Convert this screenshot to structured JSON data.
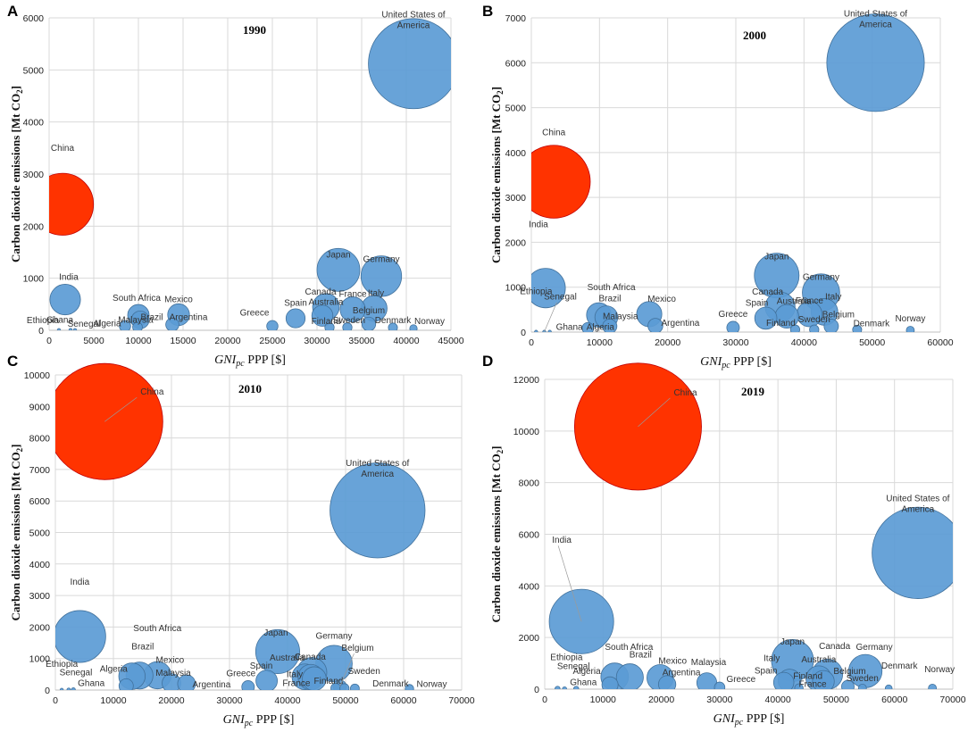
{
  "figure": {
    "x_axis_label": "GNIpc PPP [$]",
    "y_axis_label": "Carbon dioxide emissions  [Mt CO2]",
    "colors": {
      "bubble": "#5b9bd5",
      "bubble_edge": "#41719c",
      "china": "#ff3300",
      "china_edge": "#c00000"
    }
  },
  "chart_data": [
    {
      "type": "scatter",
      "panel": "A",
      "title": "1990",
      "xlabel": "GNIpc PPP [$]",
      "ylabel": "Carbon dioxide emissions [Mt CO2]",
      "xlim": [
        0,
        45000
      ],
      "ylim": [
        0,
        6000
      ],
      "xticks": [
        "0",
        "5000",
        "10000",
        "15000",
        "20000",
        "25000",
        "30000",
        "35000",
        "40000",
        "45000"
      ],
      "yticks": [
        "0",
        "1000",
        "2000",
        "3000",
        "4000",
        "5000",
        "6000"
      ],
      "points": [
        {
          "name": "China",
          "x": 1500,
          "y": 2420,
          "size": 2420
        },
        {
          "name": "India",
          "x": 1800,
          "y": 590,
          "size": 590
        },
        {
          "name": "United States of America",
          "x": 40800,
          "y": 5120,
          "size": 5120
        },
        {
          "name": "Japan",
          "x": 32400,
          "y": 1160,
          "size": 1160
        },
        {
          "name": "Germany",
          "x": 37200,
          "y": 1040,
          "size": 1040
        },
        {
          "name": "South Africa",
          "x": 10000,
          "y": 290,
          "size": 290
        },
        {
          "name": "Mexico",
          "x": 14500,
          "y": 300,
          "size": 300
        },
        {
          "name": "Brazil",
          "x": 10200,
          "y": 200,
          "size": 200
        },
        {
          "name": "Algeria",
          "x": 8500,
          "y": 80,
          "size": 80
        },
        {
          "name": "Malaysia",
          "x": 9900,
          "y": 60,
          "size": 60
        },
        {
          "name": "Argentina",
          "x": 13800,
          "y": 110,
          "size": 110
        },
        {
          "name": "Ghana",
          "x": 2400,
          "y": 5,
          "size": 5
        },
        {
          "name": "Ethiopia",
          "x": 1100,
          "y": 3,
          "size": 3
        },
        {
          "name": "Senegal",
          "x": 2900,
          "y": 4,
          "size": 4
        },
        {
          "name": "Greece",
          "x": 25000,
          "y": 80,
          "size": 80
        },
        {
          "name": "Spain",
          "x": 27600,
          "y": 230,
          "size": 230
        },
        {
          "name": "Canada",
          "x": 31000,
          "y": 450,
          "size": 450
        },
        {
          "name": "Australia",
          "x": 30600,
          "y": 280,
          "size": 280
        },
        {
          "name": "Finland",
          "x": 31400,
          "y": 55,
          "size": 55
        },
        {
          "name": "France",
          "x": 34000,
          "y": 400,
          "size": 400
        },
        {
          "name": "Italy",
          "x": 36400,
          "y": 420,
          "size": 420
        },
        {
          "name": "Sweden",
          "x": 33400,
          "y": 55,
          "size": 55
        },
        {
          "name": "Belgium",
          "x": 35800,
          "y": 120,
          "size": 120
        },
        {
          "name": "Denmark",
          "x": 38500,
          "y": 52,
          "size": 52
        },
        {
          "name": "Norway",
          "x": 40800,
          "y": 35,
          "size": 35
        }
      ]
    },
    {
      "type": "scatter",
      "panel": "B",
      "title": "2000",
      "xlabel": "GNIpc PPP [$]",
      "ylabel": "Carbon dioxide emissions [Mt CO2]",
      "xlim": [
        0,
        60000
      ],
      "ylim": [
        0,
        7000
      ],
      "xticks": [
        "0",
        "10000",
        "20000",
        "30000",
        "40000",
        "50000",
        "60000"
      ],
      "yticks": [
        "0",
        "1000",
        "2000",
        "3000",
        "4000",
        "5000",
        "6000",
        "7000"
      ],
      "points": [
        {
          "name": "China",
          "x": 3300,
          "y": 3350,
          "size": 3350
        },
        {
          "name": "India",
          "x": 2100,
          "y": 980,
          "size": 980
        },
        {
          "name": "United States of America",
          "x": 50500,
          "y": 6000,
          "size": 6000
        },
        {
          "name": "Japan",
          "x": 36000,
          "y": 1260,
          "size": 1260
        },
        {
          "name": "Germany",
          "x": 42500,
          "y": 880,
          "size": 880
        },
        {
          "name": "South Africa",
          "x": 9900,
          "y": 380,
          "size": 380
        },
        {
          "name": "Mexico",
          "x": 17300,
          "y": 400,
          "size": 400
        },
        {
          "name": "Brazil",
          "x": 11000,
          "y": 330,
          "size": 330
        },
        {
          "name": "Malaysia",
          "x": 11500,
          "y": 130,
          "size": 130
        },
        {
          "name": "Algeria",
          "x": 8300,
          "y": 85,
          "size": 85
        },
        {
          "name": "Argentina",
          "x": 18200,
          "y": 140,
          "size": 140
        },
        {
          "name": "Ethiopia",
          "x": 700,
          "y": 5,
          "size": 5
        },
        {
          "name": "Senegal",
          "x": 1900,
          "y": 5,
          "size": 5
        },
        {
          "name": "Ghana",
          "x": 2700,
          "y": 6,
          "size": 6
        },
        {
          "name": "Greece",
          "x": 29600,
          "y": 100,
          "size": 100
        },
        {
          "name": "Spain",
          "x": 34400,
          "y": 310,
          "size": 310
        },
        {
          "name": "Canada",
          "x": 36500,
          "y": 560,
          "size": 560
        },
        {
          "name": "Australia",
          "x": 37500,
          "y": 350,
          "size": 350
        },
        {
          "name": "Finland",
          "x": 38700,
          "y": 55,
          "size": 55
        },
        {
          "name": "France",
          "x": 40800,
          "y": 400,
          "size": 400
        },
        {
          "name": "Italy",
          "x": 43000,
          "y": 450,
          "size": 450
        },
        {
          "name": "Sweden",
          "x": 41500,
          "y": 55,
          "size": 55
        },
        {
          "name": "Belgium",
          "x": 44000,
          "y": 130,
          "size": 130
        },
        {
          "name": "Denmark",
          "x": 47800,
          "y": 52,
          "size": 52
        },
        {
          "name": "Norway",
          "x": 55600,
          "y": 40,
          "size": 40
        }
      ]
    },
    {
      "type": "scatter",
      "panel": "C",
      "title": "2010",
      "xlabel": "GNIpc PPP [$]",
      "ylabel": "Carbon dioxide emissions [Mt CO2]",
      "xlim": [
        0,
        70000
      ],
      "ylim": [
        0,
        10000
      ],
      "xticks": [
        "0",
        "10000",
        "20000",
        "30000",
        "40000",
        "50000",
        "60000",
        "70000"
      ],
      "yticks": [
        "0",
        "1000",
        "2000",
        "3000",
        "4000",
        "5000",
        "6000",
        "7000",
        "8000",
        "9000",
        "10000"
      ],
      "points": [
        {
          "name": "China",
          "x": 8500,
          "y": 8520,
          "size": 8520
        },
        {
          "name": "India",
          "x": 4200,
          "y": 1700,
          "size": 1700
        },
        {
          "name": "United States of America",
          "x": 55500,
          "y": 5700,
          "size": 5700
        },
        {
          "name": "Japan",
          "x": 38300,
          "y": 1220,
          "size": 1220
        },
        {
          "name": "Germany",
          "x": 48000,
          "y": 840,
          "size": 840
        },
        {
          "name": "South Africa",
          "x": 14500,
          "y": 460,
          "size": 460
        },
        {
          "name": "Brazil",
          "x": 13200,
          "y": 440,
          "size": 440
        },
        {
          "name": "Algeria",
          "x": 12200,
          "y": 130,
          "size": 130
        },
        {
          "name": "Mexico",
          "x": 17600,
          "y": 470,
          "size": 470
        },
        {
          "name": "Malaysia",
          "x": 20000,
          "y": 220,
          "size": 220
        },
        {
          "name": "Argentina",
          "x": 22600,
          "y": 200,
          "size": 200
        },
        {
          "name": "Ethiopia",
          "x": 1100,
          "y": 6,
          "size": 6
        },
        {
          "name": "Senegal",
          "x": 2300,
          "y": 8,
          "size": 8
        },
        {
          "name": "Ghana",
          "x": 3100,
          "y": 10,
          "size": 10
        },
        {
          "name": "Greece",
          "x": 33200,
          "y": 100,
          "size": 100
        },
        {
          "name": "Spain",
          "x": 36400,
          "y": 290,
          "size": 290
        },
        {
          "name": "Australia",
          "x": 43000,
          "y": 420,
          "size": 420
        },
        {
          "name": "Canada",
          "x": 44200,
          "y": 560,
          "size": 560
        },
        {
          "name": "Italy",
          "x": 44000,
          "y": 410,
          "size": 410
        },
        {
          "name": "France",
          "x": 44600,
          "y": 360,
          "size": 360
        },
        {
          "name": "Finland",
          "x": 48300,
          "y": 60,
          "size": 60
        },
        {
          "name": "Belgium",
          "x": 49000,
          "y": 110,
          "size": 110
        },
        {
          "name": "Sweden",
          "x": 49800,
          "y": 55,
          "size": 55
        },
        {
          "name": "Denmark",
          "x": 51600,
          "y": 50,
          "size": 50
        },
        {
          "name": "Norway",
          "x": 61000,
          "y": 45,
          "size": 45
        }
      ]
    },
    {
      "type": "scatter",
      "panel": "D",
      "title": "2019",
      "xlabel": "GNIpc PPP [$]",
      "ylabel": "Carbon dioxide emissions [Mt CO2]",
      "xlim": [
        0,
        70000
      ],
      "ylim": [
        0,
        12000
      ],
      "xticks": [
        "0",
        "10000",
        "20000",
        "30000",
        "40000",
        "50000",
        "60000",
        "70000"
      ],
      "yticks": [
        "0",
        "2000",
        "4000",
        "6000",
        "8000",
        "10000",
        "12000"
      ],
      "points": [
        {
          "name": "China",
          "x": 16000,
          "y": 10170,
          "size": 10170
        },
        {
          "name": "India",
          "x": 6300,
          "y": 2620,
          "size": 2620
        },
        {
          "name": "United States of America",
          "x": 64000,
          "y": 5280,
          "size": 5280
        },
        {
          "name": "Japan",
          "x": 42500,
          "y": 1110,
          "size": 1110
        },
        {
          "name": "Germany",
          "x": 55000,
          "y": 700,
          "size": 700
        },
        {
          "name": "South Africa",
          "x": 12000,
          "y": 480,
          "size": 480
        },
        {
          "name": "Brazil",
          "x": 14600,
          "y": 460,
          "size": 460
        },
        {
          "name": "Mexico",
          "x": 19800,
          "y": 440,
          "size": 440
        },
        {
          "name": "Argentina",
          "x": 21000,
          "y": 190,
          "size": 190
        },
        {
          "name": "Malaysia",
          "x": 27800,
          "y": 250,
          "size": 250
        },
        {
          "name": "Greece",
          "x": 30000,
          "y": 70,
          "size": 70
        },
        {
          "name": "Ethiopia",
          "x": 2200,
          "y": 16,
          "size": 16
        },
        {
          "name": "Senegal",
          "x": 3400,
          "y": 11,
          "size": 11
        },
        {
          "name": "Algeria",
          "x": 11200,
          "y": 165,
          "size": 165
        },
        {
          "name": "Ghana",
          "x": 5400,
          "y": 16,
          "size": 16
        },
        {
          "name": "Italy",
          "x": 42000,
          "y": 330,
          "size": 330
        },
        {
          "name": "Spain",
          "x": 41000,
          "y": 260,
          "size": 260
        },
        {
          "name": "Finland",
          "x": 43600,
          "y": 45,
          "size": 45
        },
        {
          "name": "Australia",
          "x": 47000,
          "y": 410,
          "size": 410
        },
        {
          "name": "Canada",
          "x": 48500,
          "y": 580,
          "size": 580
        },
        {
          "name": "France",
          "x": 47800,
          "y": 300,
          "size": 300
        },
        {
          "name": "Belgium",
          "x": 52000,
          "y": 100,
          "size": 100
        },
        {
          "name": "Sweden",
          "x": 54500,
          "y": 40,
          "size": 40
        },
        {
          "name": "Denmark",
          "x": 59000,
          "y": 30,
          "size": 30
        },
        {
          "name": "Norway",
          "x": 66500,
          "y": 40,
          "size": 40
        }
      ]
    }
  ]
}
